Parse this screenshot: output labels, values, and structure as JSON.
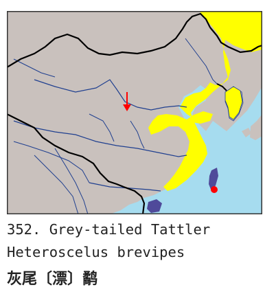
{
  "caption": {
    "number_line": "352. Grey-tailed Tattler",
    "scientific_name": "Heteroscelus brevipes",
    "chinese_name": "灰尾〔漂〕鹬"
  },
  "map": {
    "colors": {
      "sea": "#a6dcef",
      "land": "#c9c1bd",
      "range": "#ffff00",
      "river": "#1f3f8f",
      "border": "#000000",
      "islands": "#4f4a9a",
      "marker": "#ff0000"
    },
    "legend": {
      "range_meaning": "distribution",
      "marker_meaning": "record location"
    }
  }
}
